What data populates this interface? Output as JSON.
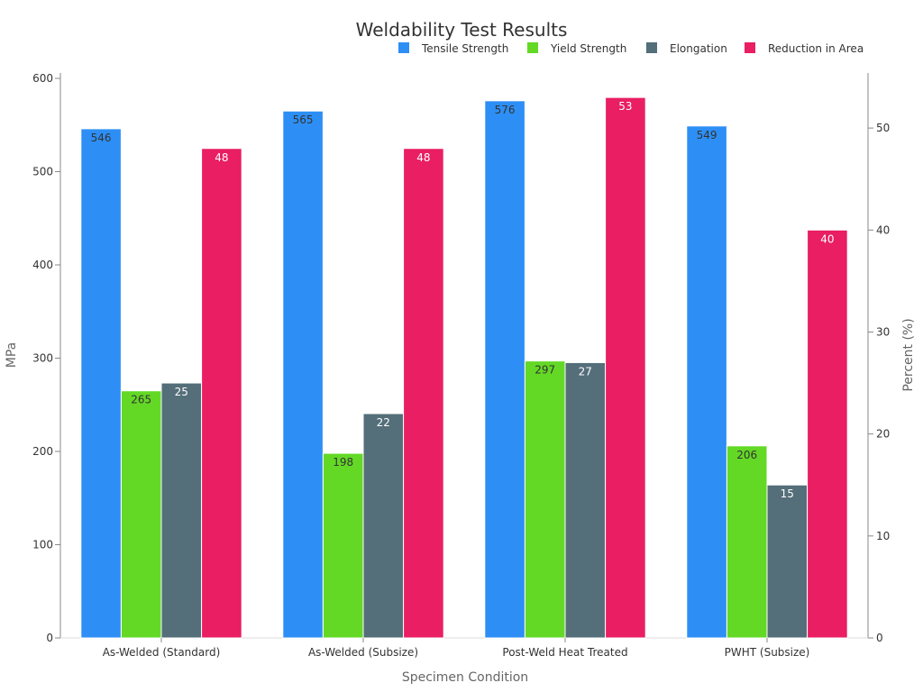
{
  "chart_data": {
    "type": "bar",
    "title": "Weldability Test Results",
    "xlabel": "Specimen Condition",
    "ylabel": "MPa",
    "y2label": "Percent (%)",
    "categories": [
      "As-Welded (Standard)",
      "As-Welded (Subsize)",
      "Post-Weld Heat Treated",
      "PWHT (Subsize)"
    ],
    "ylim": [
      0,
      600
    ],
    "y2lim": [
      0,
      55.4
    ],
    "yticks": [
      0,
      100,
      200,
      300,
      400,
      500,
      600
    ],
    "y2ticks": [
      0,
      10,
      20,
      30,
      40,
      50
    ],
    "legend_position": "top-right",
    "grid": false,
    "series": [
      {
        "name": "Tensile Strength",
        "axis": "left",
        "color": "#2d8ff5",
        "label_color": "#333333",
        "values": [
          546,
          565,
          576,
          549
        ]
      },
      {
        "name": "Yield Strength",
        "axis": "left",
        "color": "#63d926",
        "label_color": "#333333",
        "values": [
          265,
          198,
          297,
          206
        ]
      },
      {
        "name": "Elongation",
        "axis": "right",
        "color": "#546e7a",
        "label_color": "#ffffff",
        "values": [
          25,
          22,
          27,
          15
        ]
      },
      {
        "name": "Reduction in Area",
        "axis": "right",
        "color": "#e91e63",
        "label_color": "#ffffff",
        "values": [
          48,
          48,
          53,
          40
        ]
      }
    ]
  }
}
